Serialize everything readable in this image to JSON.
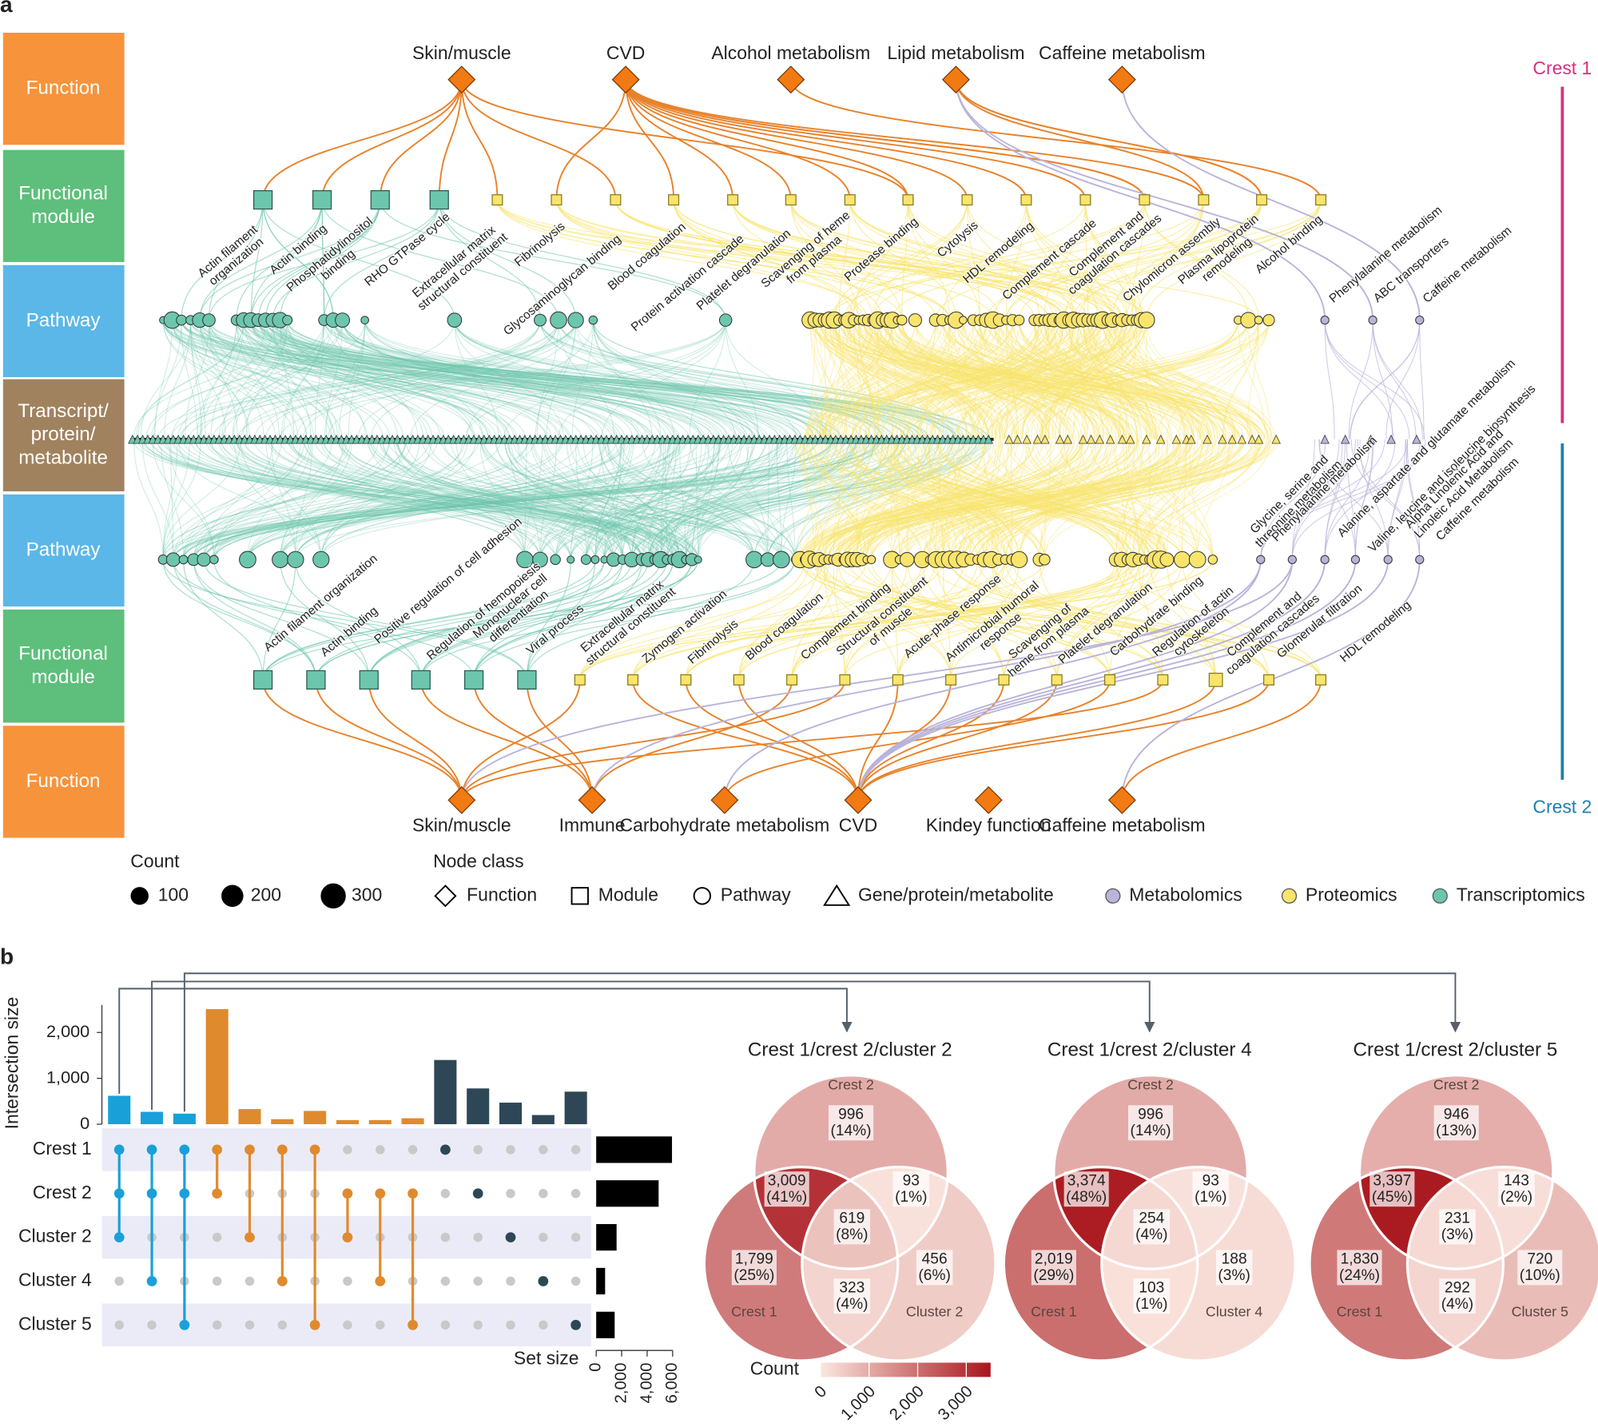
{
  "panel_a": {
    "label": "a",
    "rows": [
      [
        "Function"
      ],
      [
        "Functional",
        "module"
      ],
      [
        "Pathway"
      ],
      [
        "Transcript/",
        "protein/",
        "metabolite"
      ],
      [
        "Pathway"
      ],
      [
        "Functional",
        "module"
      ],
      [
        "Function"
      ]
    ],
    "crests": [
      "Crest 1",
      "Crest 2"
    ],
    "top_functions": [
      "Skin/muscle",
      "CVD",
      "Alcohol metabolism",
      "Lipid metabolism",
      "Caffeine metabolism"
    ],
    "top_labels": [
      [
        "Actin filament",
        "organization"
      ],
      [
        "Actin binding"
      ],
      [
        "Phosphatidylinositol",
        "binding"
      ],
      [
        "RHO GTPase cycle"
      ],
      [
        "Extracellular matrix",
        "structural constituent"
      ],
      [
        "Fibrinolysis"
      ],
      [
        "Glycosaminoglycan binding"
      ],
      [
        "Blood coagulation"
      ],
      [
        "Protein activation cascade"
      ],
      [
        "Platelet degranulation"
      ],
      [
        "Scavenging of heme",
        "from plasma"
      ],
      [
        "Protease binding"
      ],
      [
        "Cytolysis"
      ],
      [
        "HDL remodeling"
      ],
      [
        "Complement cascade"
      ],
      [
        "Complement and",
        "coagulation cascades"
      ],
      [
        "Chylomicron assembly"
      ],
      [
        "Plasma lipoprotein",
        "remodeling"
      ],
      [
        "Alcohol binding"
      ],
      [
        "Phenylalanine metabolism"
      ],
      [
        "ABC transporters"
      ],
      [
        "Caffeine metabolism"
      ]
    ],
    "bottom_functions": [
      "Skin/muscle",
      "Immune",
      "Carbohydrate metabolism",
      "CVD",
      "Kindey function",
      "Caffeine metabolism"
    ],
    "bottom_labels": [
      [
        "Actin filament organization"
      ],
      [
        "Actin binding"
      ],
      [
        "Positive regulation of cell adhesion"
      ],
      [
        "Regulation of hemopoiesis"
      ],
      [
        "Mononuclear cell",
        "differentiation"
      ],
      [
        "Viral process"
      ],
      [
        "Extracellular matrix",
        "structural constituent"
      ],
      [
        "Zymogen activation"
      ],
      [
        "Fibrinolysis"
      ],
      [
        "Blood coagulation"
      ],
      [
        "Complement binding"
      ],
      [
        "Structural constituent",
        "of muscle"
      ],
      [
        "Acute-phase response"
      ],
      [
        "Antimicrobial humoral",
        "response"
      ],
      [
        "Scavenging of",
        "heme from plasma"
      ],
      [
        "Platelet degranulation"
      ],
      [
        "Carbohydrate binding"
      ],
      [
        "Regulation of actin",
        "cytoskeleton"
      ],
      [
        "Complement and",
        "coagulation cascades"
      ],
      [
        "Glomerular filtration"
      ],
      [
        "HDL remodeling"
      ],
      [
        "Glycine, serine and",
        "threonine metabolism"
      ],
      [
        "Phenylalanine metabolism"
      ],
      [
        "Alanine, aspartate and glutamate metabolism"
      ],
      [
        "Valine, leucine and isoleucine biosynthesis"
      ],
      [
        "Alpha Linolenic Acid and",
        "Linoleic Acid Metabolism"
      ],
      [
        "Caffeine metabolism"
      ]
    ],
    "legend": {
      "count_title": "Count",
      "count_values": [
        100,
        200,
        300
      ],
      "node_class_title": "Node class",
      "node_classes": [
        "Function",
        "Module",
        "Pathway",
        "Gene/protein/metabolite"
      ],
      "omics": [
        {
          "name": "Metabolomics",
          "color": "#b9b4da"
        },
        {
          "name": "Proteomics",
          "color": "#f9e46c"
        },
        {
          "name": "Transcriptomics",
          "color": "#6cc6ad"
        }
      ]
    }
  },
  "panel_b_label": "b",
  "chart_data": [
    {
      "type": "upset",
      "ylabel": "Intersection size",
      "ylim": [
        0,
        2600
      ],
      "yticks": [
        0,
        {
          "value": 1000,
          "label": "1,000"
        },
        {
          "value": 2000,
          "label": "2,000"
        }
      ],
      "sets": [
        "Crest 1",
        "Crest 2",
        "Cluster 2",
        "Cluster 4",
        "Cluster 5"
      ],
      "values": [
        620,
        270,
        230,
        2510,
        330,
        110,
        290,
        90,
        90,
        130,
        1400,
        780,
        470,
        200,
        710
      ],
      "colors": [
        "#1aa0d8",
        "#1aa0d8",
        "#1aa0d8",
        "#e08a2e",
        "#e08a2e",
        "#e08a2e",
        "#e08a2e",
        "#e08a2e",
        "#e08a2e",
        "#e08a2e",
        "#2e4756",
        "#2e4756",
        "#2e4756",
        "#2e4756",
        "#2e4756"
      ],
      "members": [
        [
          0,
          1,
          2
        ],
        [
          0,
          1,
          3
        ],
        [
          0,
          1,
          4
        ],
        [
          0,
          1
        ],
        [
          0,
          2
        ],
        [
          0,
          3
        ],
        [
          0,
          4
        ],
        [
          1,
          2
        ],
        [
          1,
          3
        ],
        [
          1,
          4
        ],
        [
          0
        ],
        [
          1
        ],
        [
          2
        ],
        [
          3
        ],
        [
          4
        ]
      ]
    },
    {
      "type": "hbar",
      "xlabel": "Set size",
      "values": [
        5950,
        4900,
        1600,
        700,
        1450
      ],
      "color": "#000000",
      "xlim": [
        0,
        6000
      ],
      "xticks": [
        0,
        {
          "value": 2000,
          "label": "2,000"
        },
        {
          "value": 4000,
          "label": "4,000"
        },
        {
          "value": 6000,
          "label": "6,000"
        }
      ]
    },
    {
      "type": "venn",
      "title": "Crest 1/crest 2/cluster 2",
      "sets": [
        "Crest 2",
        "Crest 1",
        "Cluster 2"
      ],
      "regions": [
        {
          "in": [
            0
          ],
          "count": 996,
          "label": "996",
          "pct": "(14%)"
        },
        {
          "in": [
            1
          ],
          "count": 1799,
          "label": "1,799",
          "pct": "(25%)"
        },
        {
          "in": [
            2
          ],
          "count": 456,
          "label": "456",
          "pct": "(6%)"
        },
        {
          "in": [
            0,
            1
          ],
          "count": 3009,
          "label": "3,009",
          "pct": "(41%)"
        },
        {
          "in": [
            0,
            2
          ],
          "count": 93,
          "label": "93",
          "pct": "(1%)"
        },
        {
          "in": [
            1,
            2
          ],
          "count": 323,
          "label": "323",
          "pct": "(4%)"
        },
        {
          "in": [
            0,
            1,
            2
          ],
          "count": 619,
          "label": "619",
          "pct": "(8%)"
        }
      ]
    },
    {
      "type": "venn",
      "title": "Crest 1/crest 2/cluster 4",
      "sets": [
        "Crest 2",
        "Crest 1",
        "Cluster 4"
      ],
      "regions": [
        {
          "in": [
            0
          ],
          "count": 996,
          "label": "996",
          "pct": "(14%)"
        },
        {
          "in": [
            1
          ],
          "count": 2019,
          "label": "2,019",
          "pct": "(29%)"
        },
        {
          "in": [
            2
          ],
          "count": 188,
          "label": "188",
          "pct": "(3%)"
        },
        {
          "in": [
            0,
            1
          ],
          "count": 3374,
          "label": "3,374",
          "pct": "(48%)"
        },
        {
          "in": [
            0,
            2
          ],
          "count": 93,
          "label": "93",
          "pct": "(1%)"
        },
        {
          "in": [
            1,
            2
          ],
          "count": 103,
          "label": "103",
          "pct": "(1%)"
        },
        {
          "in": [
            0,
            1,
            2
          ],
          "count": 254,
          "label": "254",
          "pct": "(4%)"
        }
      ]
    },
    {
      "type": "venn",
      "title": "Crest 1/crest 2/cluster 5",
      "sets": [
        "Crest 2",
        "Crest 1",
        "Cluster 5"
      ],
      "regions": [
        {
          "in": [
            0
          ],
          "count": 946,
          "label": "946",
          "pct": "(13%)"
        },
        {
          "in": [
            1
          ],
          "count": 1830,
          "label": "1,830",
          "pct": "(24%)"
        },
        {
          "in": [
            2
          ],
          "count": 720,
          "label": "720",
          "pct": "(10%)"
        },
        {
          "in": [
            0,
            1
          ],
          "count": 3397,
          "label": "3,397",
          "pct": "(45%)"
        },
        {
          "in": [
            0,
            2
          ],
          "count": 143,
          "label": "143",
          "pct": "(2%)"
        },
        {
          "in": [
            1,
            2
          ],
          "count": 292,
          "label": "292",
          "pct": "(4%)"
        },
        {
          "in": [
            0,
            1,
            2
          ],
          "count": 231,
          "label": "231",
          "pct": "(3%)"
        }
      ]
    },
    {
      "type": "colorbar",
      "title": "Count",
      "lim": [
        0,
        3500
      ],
      "colors": [
        "#fbe7e0",
        "#a8151b"
      ],
      "ticks": [
        0,
        {
          "value": 1000,
          "label": "1,000"
        },
        {
          "value": 2000,
          "label": "2,000"
        },
        {
          "value": 3000,
          "label": "3,000"
        }
      ]
    }
  ]
}
